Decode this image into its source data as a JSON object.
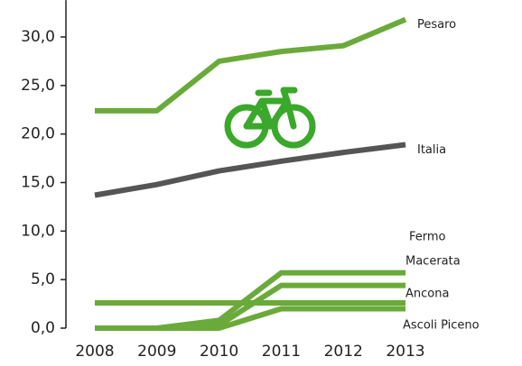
{
  "chart_data": {
    "type": "line",
    "categories": [
      "2008",
      "2009",
      "2010",
      "2011",
      "2012",
      "2013"
    ],
    "series": [
      {
        "name": "Pesaro",
        "color": "#6aaa3a",
        "values": [
          22.4,
          22.4,
          27.5,
          28.5,
          29.1,
          31.8
        ]
      },
      {
        "name": "Italia",
        "color": "#555555",
        "values": [
          13.7,
          14.8,
          16.2,
          17.2,
          18.1,
          18.9
        ]
      },
      {
        "name": "Fermo",
        "color": "#6aaa3a",
        "values": [
          0,
          0,
          0.8,
          5.7,
          5.7,
          5.7
        ]
      },
      {
        "name": "Macerata",
        "color": "#6aaa3a",
        "values": [
          0,
          0,
          0.3,
          4.4,
          4.4,
          4.4
        ]
      },
      {
        "name": "Ancona",
        "color": "#6aaa3a",
        "values": [
          2.6,
          2.6,
          2.6,
          2.6,
          2.6,
          2.6
        ]
      },
      {
        "name": "Ascoli Piceno",
        "color": "#6aaa3a",
        "values": [
          0,
          0,
          0,
          2.0,
          2.0,
          2.0
        ]
      }
    ],
    "ylim": [
      0,
      33.8
    ],
    "yticks": [
      {
        "value": 0,
        "label": "0,0"
      },
      {
        "value": 5,
        "label": "5,0"
      },
      {
        "value": 10,
        "label": "10,0"
      },
      {
        "value": 15,
        "label": "15,0"
      },
      {
        "value": 20,
        "label": "20,0"
      },
      {
        "value": 25,
        "label": "25,0"
      },
      {
        "value": 30,
        "label": "30,0"
      }
    ]
  }
}
